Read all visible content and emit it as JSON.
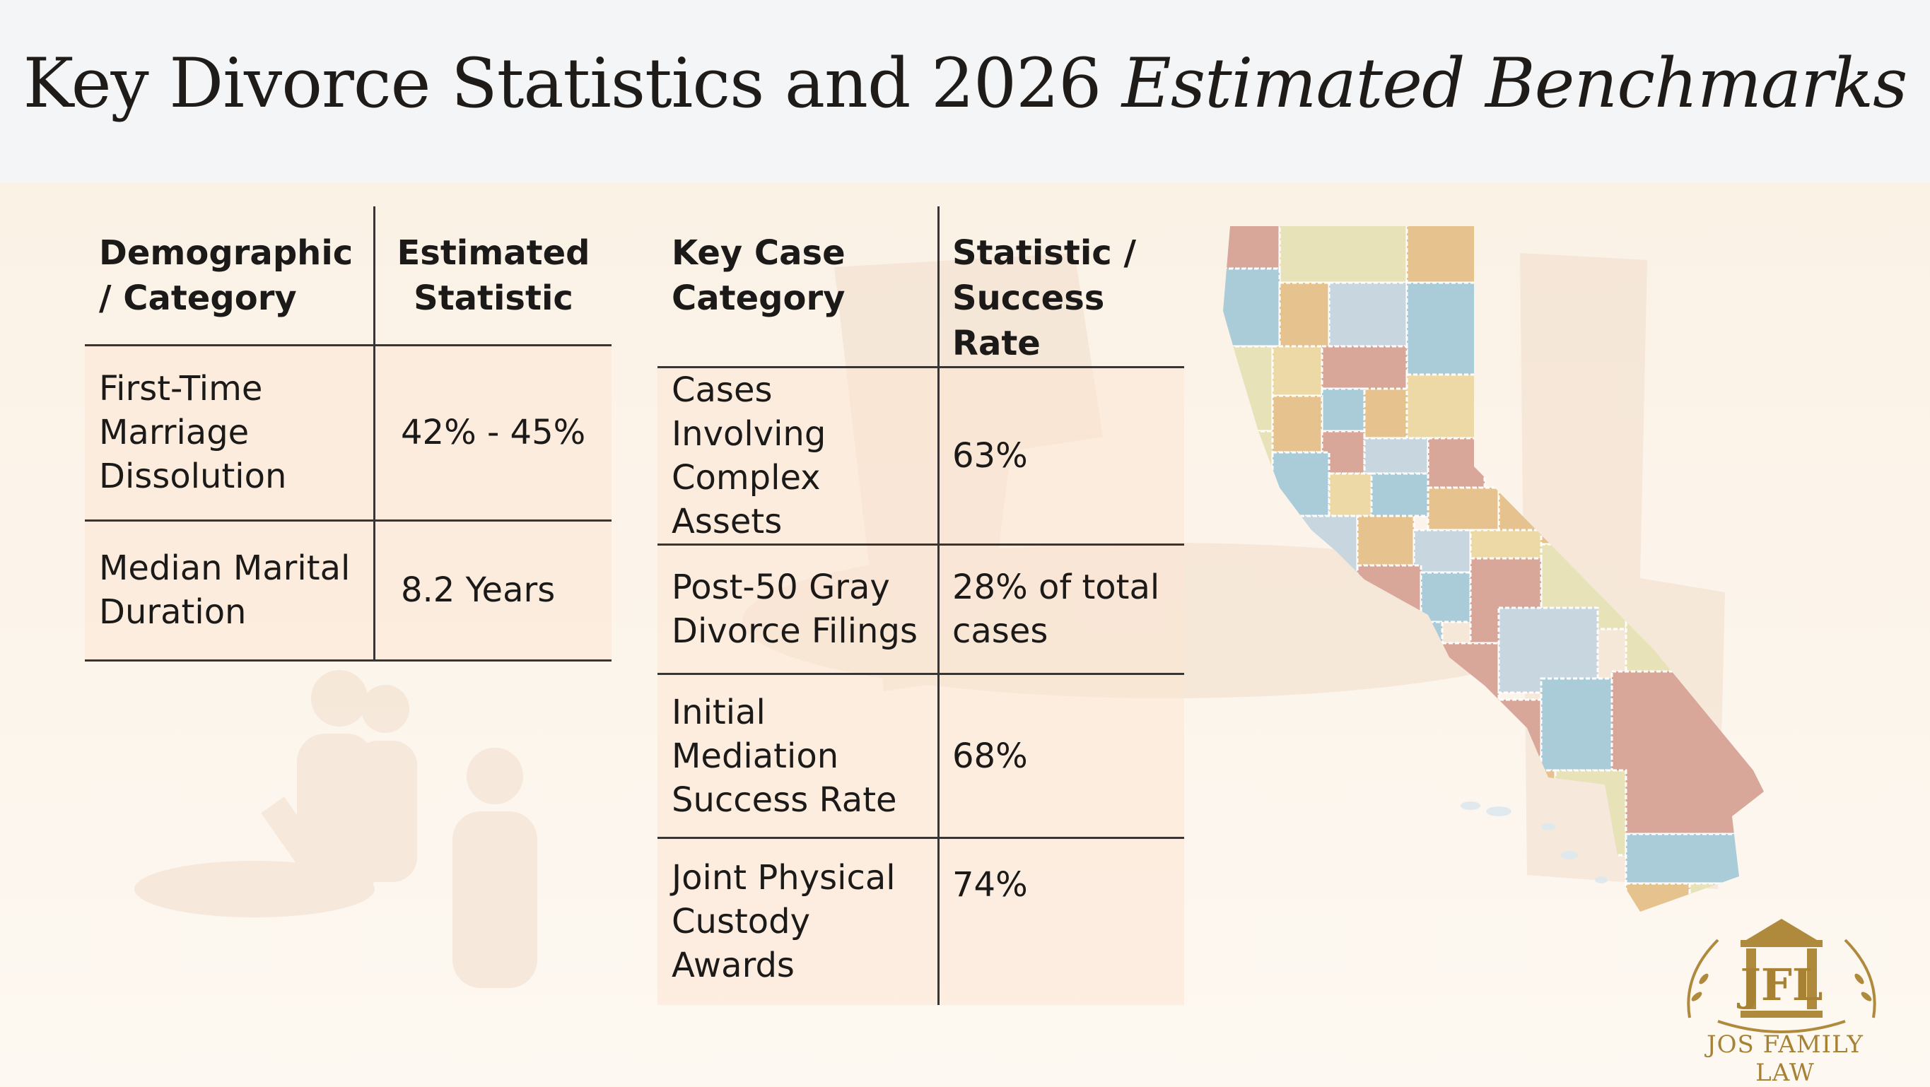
{
  "title": {
    "main": "Key Divorce Statistics and 2026 ",
    "italic": "Estimated Benchmarks"
  },
  "demographics_table": {
    "headers": [
      "Demographic / Category",
      "Estimated Statistic"
    ],
    "rows": [
      {
        "category": "First-Time Marriage Dissolution",
        "statistic": "42% - 45%"
      },
      {
        "category": "Median Marital Duration",
        "statistic": "8.2 Years"
      }
    ]
  },
  "case_table": {
    "headers": [
      "Key Case Category",
      "Statistic / Success Rate"
    ],
    "rows": [
      {
        "category": "Cases Involving Complex Assets",
        "statistic": "63%"
      },
      {
        "category": "Post-50 Gray Divorce Filings",
        "statistic": "28% of total cases"
      },
      {
        "category": "Initial Mediation Success Rate",
        "statistic": "68%"
      },
      {
        "category": "Joint Physical Custody Awards",
        "statistic": "74%"
      }
    ]
  },
  "logo": {
    "monogram": "JFL",
    "name": "JOS FAMILY LAW"
  },
  "colors": {
    "header_bg": "#f4f5f6",
    "content_bg": "#fbf2e6",
    "rule": "#3a3532",
    "logo_gold": "#a78234",
    "map_palette": [
      "#a9ccd8",
      "#d9a69a",
      "#ecd9a6",
      "#e6c38e",
      "#c8d6e0",
      "#e8e2b8"
    ]
  }
}
